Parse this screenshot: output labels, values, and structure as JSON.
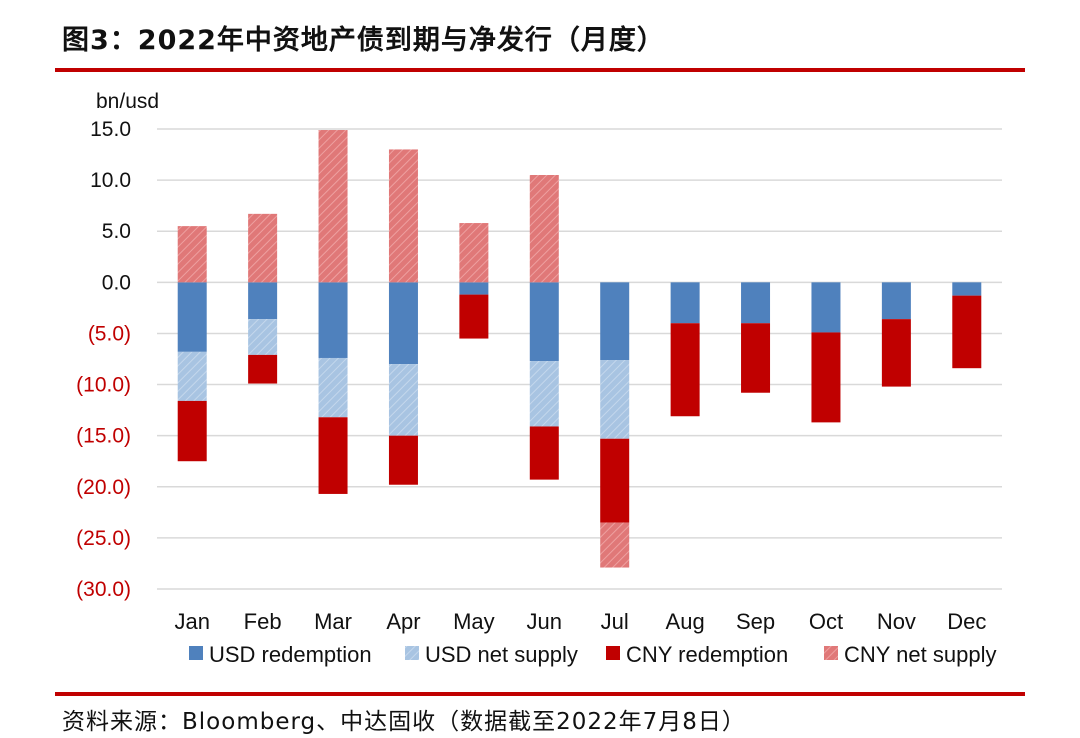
{
  "title": "图3：2022年中资地产债到期与净发行（月度）",
  "source": "资料来源：Bloomberg、中达固收（数据截至2022年7月8日）",
  "chart_data": {
    "type": "bar",
    "stacked": true,
    "unit_label": "bn/usd",
    "categories": [
      "Jan",
      "Feb",
      "Mar",
      "Apr",
      "May",
      "Jun",
      "Jul",
      "Aug",
      "Sep",
      "Oct",
      "Nov",
      "Dec"
    ],
    "ylim": [
      -30,
      15
    ],
    "yticks": [
      15,
      10,
      5,
      0,
      -5,
      -10,
      -15,
      -20,
      -25,
      -30
    ],
    "ytick_labels": [
      "15.0",
      "10.0",
      "5.0",
      "0.0",
      "(5.0)",
      "(10.0)",
      "(15.0)",
      "(20.0)",
      "(25.0)",
      "(30.0)"
    ],
    "negative_tick_color": "#c00000",
    "positive_tick_color": "#111111",
    "grid": true,
    "legend_position": "bottom",
    "series": [
      {
        "name": "USD redemption",
        "color": "#4f81bd",
        "hatched": false,
        "values": [
          -6.8,
          -3.6,
          -7.4,
          -8.0,
          -1.2,
          -7.7,
          -7.6,
          -4.0,
          -4.0,
          -4.9,
          -3.6,
          -1.3
        ]
      },
      {
        "name": "USD net supply",
        "color": "#a8c4e2",
        "hatched": true,
        "values": [
          -4.8,
          -3.5,
          -5.8,
          -7.0,
          0,
          -6.4,
          -7.7,
          0,
          0,
          0,
          0,
          0
        ]
      },
      {
        "name": "CNY redemption",
        "color": "#c00000",
        "hatched": false,
        "values": [
          -5.9,
          -2.8,
          -7.5,
          -4.8,
          -4.3,
          -5.2,
          -8.2,
          -9.1,
          -6.8,
          -8.8,
          -6.6,
          -7.1
        ]
      },
      {
        "name": "CNY net supply",
        "color": "#e07878",
        "hatched": true,
        "values": [
          5.5,
          6.7,
          14.9,
          13.0,
          5.8,
          10.5,
          -4.4,
          0,
          0,
          0,
          0,
          0
        ]
      }
    ]
  }
}
